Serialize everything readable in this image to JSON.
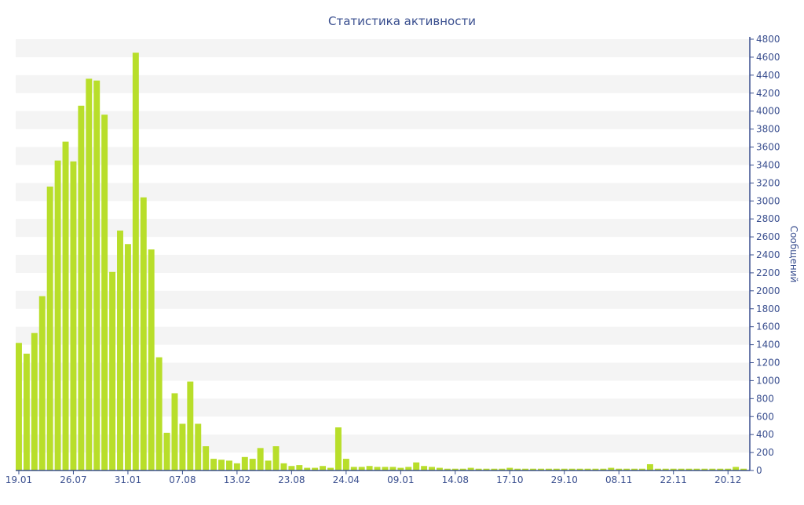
{
  "chart_data": {
    "type": "bar",
    "title": "Статистика активности",
    "xlabel": "",
    "ylabel": "Сообщений",
    "ylim": [
      0,
      4800
    ],
    "y_ticks": [
      0,
      200,
      400,
      600,
      800,
      1000,
      1200,
      1400,
      1600,
      1800,
      2000,
      2200,
      2400,
      2600,
      2800,
      3000,
      3200,
      3400,
      3600,
      3800,
      4000,
      4200,
      4400,
      4600,
      4800
    ],
    "y_axis_side": "right",
    "grid": "alternating horizontal bands",
    "legend": "none",
    "x_tick_labels": [
      "19.01",
      "26.07",
      "31.01",
      "07.08",
      "13.02",
      "23.08",
      "24.04",
      "09.01",
      "14.08",
      "17.10",
      "29.10",
      "08.11",
      "22.11",
      "20.12"
    ],
    "x_tick_label_bar_index": [
      0,
      7,
      14,
      21,
      28,
      35,
      42,
      49,
      56,
      63,
      70,
      77,
      84,
      91
    ],
    "values": [
      1420,
      1300,
      1530,
      1940,
      3160,
      3450,
      3660,
      3440,
      4060,
      4360,
      4340,
      3960,
      2210,
      2670,
      2520,
      4650,
      3040,
      2460,
      1260,
      420,
      860,
      520,
      990,
      520,
      270,
      130,
      120,
      110,
      80,
      150,
      130,
      250,
      110,
      270,
      80,
      50,
      60,
      30,
      30,
      50,
      30,
      480,
      130,
      40,
      40,
      50,
      40,
      40,
      40,
      30,
      40,
      90,
      50,
      40,
      30,
      20,
      20,
      20,
      30,
      20,
      20,
      20,
      20,
      30,
      20,
      20,
      20,
      20,
      20,
      20,
      20,
      20,
      20,
      20,
      20,
      20,
      30,
      20,
      20,
      20,
      20,
      70,
      20,
      20,
      20,
      20,
      20,
      20,
      20,
      20,
      20,
      20,
      40,
      20
    ],
    "bar_color": "#b8de2a"
  }
}
